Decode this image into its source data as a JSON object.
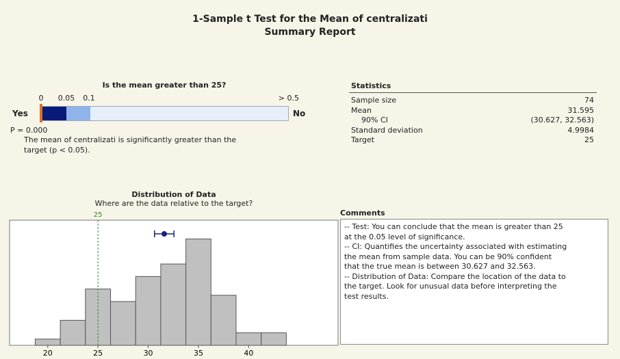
{
  "title": "1-Sample t Test for the Mean of centralizati",
  "subtitle": "Summary Report",
  "pvalue_panel": {
    "question": "Is the mean greater than 25?",
    "scale_labels": [
      "0",
      "0.05",
      "0.1",
      "> 0.5"
    ],
    "yes": "Yes",
    "no": "No",
    "p_label": "P = 0.000",
    "conclusion": "The mean of centralizati is significantly greater than the target (p < 0.05)."
  },
  "statistics": {
    "header": "Statistics",
    "rows": [
      [
        "Sample size",
        "74"
      ],
      [
        "Mean",
        "31.595"
      ],
      [
        "90% CI",
        "(30.627, 32.563)"
      ],
      [
        "Standard deviation",
        "4.9984"
      ],
      [
        "Target",
        "25"
      ]
    ]
  },
  "comments": {
    "header": "Comments",
    "lines": [
      "-- Test: You can conclude that the mean is greater than 25",
      "at the 0.05 level of significance.",
      "-- CI: Quantifies the uncertainty associated with estimating",
      "the mean from sample data. You can be 90% confident",
      "that the true mean is between 30.627 and 32.563.",
      "-- Distribution of Data: Compare the location of the data to",
      "the target. Look for unusual data before interpreting the",
      "test results."
    ]
  },
  "chart_data": {
    "type": "histogram",
    "title": "Distribution of Data",
    "subtitle": "Where are the data relative to the target?",
    "bins": [
      18.75,
      21.25,
      23.75,
      26.25,
      28.75,
      31.25,
      33.75,
      36.25,
      38.75,
      41.25,
      43.75
    ],
    "counts": [
      1,
      4,
      9,
      7,
      11,
      13,
      17,
      8,
      2,
      2
    ],
    "color": "#c0c0c0",
    "xlim": [
      16.2,
      48.9
    ],
    "ylim": [
      0,
      20
    ],
    "xticks": [
      20,
      25,
      30,
      35,
      40
    ],
    "target": 25,
    "target_color": "#2e8b2e",
    "mean_marker": 31.595,
    "ci_marker": [
      30.627,
      32.563
    ],
    "marker_color": "#1a237e"
  }
}
